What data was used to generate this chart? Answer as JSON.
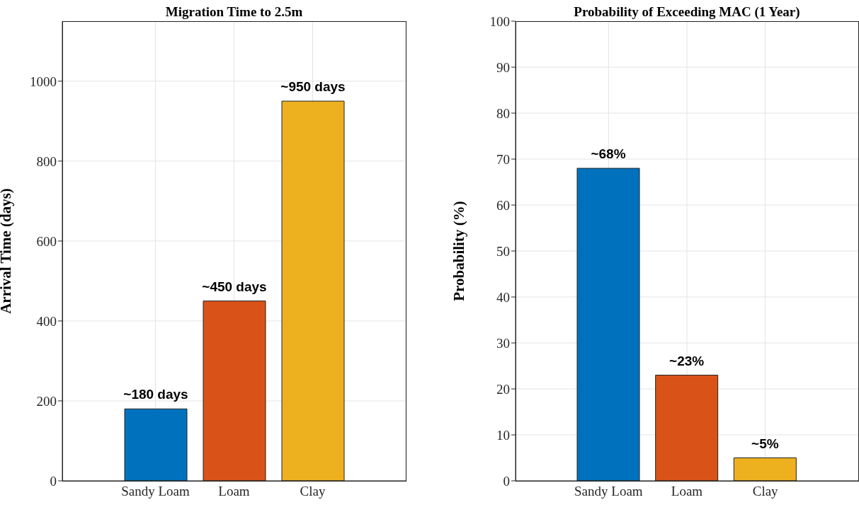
{
  "chart_data": [
    {
      "type": "bar",
      "title": "Migration Time to 2.5m",
      "ylabel": "Arrival Time (days)",
      "categories": [
        "Sandy Loam",
        "Loam",
        "Clay"
      ],
      "values": [
        180,
        450,
        950
      ],
      "colors": [
        "#0072bd",
        "#d95319",
        "#edb120"
      ],
      "value_labels": [
        "~180 days",
        "~450 days",
        "~950 days"
      ],
      "ylim": [
        0,
        1150
      ],
      "yticks": [
        0,
        200,
        400,
        600,
        800,
        1000
      ],
      "grid": true
    },
    {
      "type": "bar",
      "title": "Probability of Exceeding MAC (1 Year)",
      "ylabel": "Probability (%)",
      "categories": [
        "Sandy Loam",
        "Loam",
        "Clay"
      ],
      "values": [
        68,
        23,
        5
      ],
      "colors": [
        "#0072bd",
        "#d95319",
        "#edb120"
      ],
      "value_labels": [
        "~68%",
        "~23%",
        "~5%"
      ],
      "ylim": [
        0,
        100
      ],
      "yticks": [
        0,
        10,
        20,
        30,
        40,
        50,
        60,
        70,
        80,
        90,
        100
      ],
      "grid": true
    }
  ]
}
